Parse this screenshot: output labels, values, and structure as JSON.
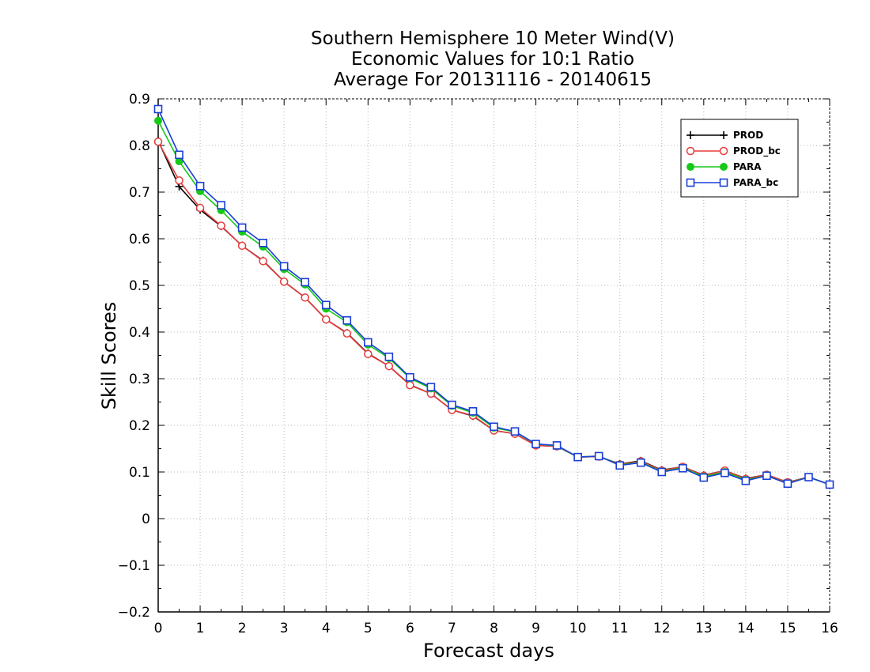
{
  "chart_data": {
    "type": "line",
    "title": [
      "Southern Hemisphere 10 Meter Wind(V)",
      "Economic Values for 10:1 Ratio",
      "Average For 20131116 - 20140615"
    ],
    "xlabel": "Forecast days",
    "ylabel": "Skill Scores",
    "xlim": [
      0,
      16
    ],
    "ylim": [
      -0.2,
      0.9
    ],
    "xticks": [
      0,
      1,
      2,
      3,
      4,
      5,
      6,
      7,
      8,
      9,
      10,
      11,
      12,
      13,
      14,
      15,
      16
    ],
    "yticks": [
      -0.2,
      -0.1,
      0,
      0.1,
      0.2,
      0.3,
      0.4,
      0.5,
      0.6,
      0.7,
      0.8,
      0.9
    ],
    "xtick_labels": [
      "0",
      "1",
      "2",
      "3",
      "4",
      "5",
      "6",
      "7",
      "8",
      "9",
      "10",
      "11",
      "12",
      "13",
      "14",
      "15",
      "16"
    ],
    "ytick_labels": [
      "−0.2",
      "−0.1",
      "0",
      "0.1",
      "0.2",
      "0.3",
      "0.4",
      "0.5",
      "0.6",
      "0.7",
      "0.8",
      "0.9"
    ],
    "grid": true,
    "legend_position": "top-right",
    "x": [
      0,
      0.5,
      1,
      1.5,
      2,
      2.5,
      3,
      3.5,
      4,
      4.5,
      5,
      5.5,
      6,
      6.5,
      7,
      7.5,
      8,
      8.5,
      9,
      9.5,
      10,
      10.5,
      11,
      11.5,
      12,
      12.5,
      13,
      13.5,
      14,
      14.5,
      15,
      15.5,
      16
    ],
    "series": [
      {
        "name": "PROD",
        "color": "#000000",
        "marker": "plus",
        "values": [
          0.81,
          0.712,
          0.662,
          0.627,
          0.585,
          0.553,
          0.508,
          0.474,
          0.427,
          0.398,
          0.354,
          0.327,
          0.287,
          0.268,
          0.233,
          0.22,
          0.189,
          0.182,
          0.157,
          0.155,
          0.132,
          0.133,
          0.117,
          0.124,
          0.104,
          0.111,
          0.093,
          0.103,
          0.086,
          0.094,
          0.078,
          0.089,
          0.073
        ]
      },
      {
        "name": "PROD_bc",
        "color": "#e83c3c",
        "marker": "circle-open",
        "values": [
          0.808,
          0.725,
          0.666,
          0.628,
          0.585,
          0.552,
          0.508,
          0.474,
          0.427,
          0.397,
          0.353,
          0.327,
          0.286,
          0.268,
          0.233,
          0.221,
          0.189,
          0.182,
          0.157,
          0.155,
          0.132,
          0.133,
          0.116,
          0.123,
          0.103,
          0.111,
          0.092,
          0.103,
          0.085,
          0.094,
          0.078,
          0.089,
          0.073
        ]
      },
      {
        "name": "PARA",
        "color": "#16c916",
        "marker": "circle-filled",
        "values": [
          0.853,
          0.766,
          0.702,
          0.661,
          0.615,
          0.583,
          0.535,
          0.502,
          0.45,
          0.421,
          0.373,
          0.344,
          0.301,
          0.279,
          0.242,
          0.227,
          0.195,
          0.186,
          0.16,
          0.156,
          0.132,
          0.134,
          0.115,
          0.121,
          0.101,
          0.109,
          0.09,
          0.1,
          0.083,
          0.092,
          0.076,
          0.089,
          0.073
        ]
      },
      {
        "name": "PARA_bc",
        "color": "#1a3fd6",
        "marker": "square-open",
        "values": [
          0.878,
          0.78,
          0.713,
          0.672,
          0.624,
          0.591,
          0.541,
          0.507,
          0.458,
          0.425,
          0.378,
          0.347,
          0.303,
          0.282,
          0.244,
          0.23,
          0.197,
          0.187,
          0.16,
          0.157,
          0.132,
          0.134,
          0.114,
          0.12,
          0.1,
          0.108,
          0.088,
          0.098,
          0.081,
          0.092,
          0.075,
          0.089,
          0.073
        ]
      }
    ]
  }
}
